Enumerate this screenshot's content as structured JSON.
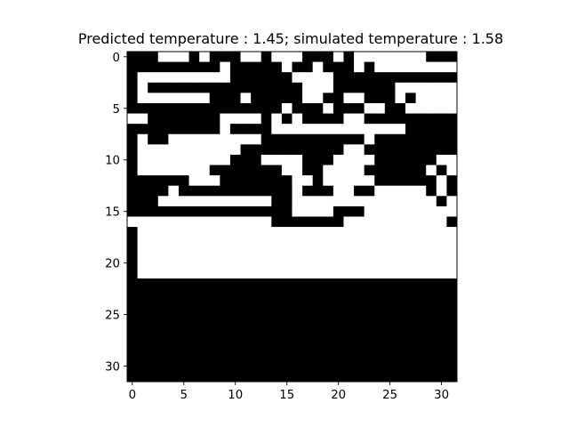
{
  "chart_data": {
    "type": "heatmap",
    "title": "Predicted temperature : 1.45; simulated temperature : 1.58",
    "xlabel": "",
    "ylabel": "",
    "colormap": "binary",
    "colors": {
      "on": "#000000",
      "off": "#ffffff"
    },
    "grid": false,
    "legend": "none",
    "x_ticks": [
      0,
      5,
      10,
      15,
      20,
      25,
      30
    ],
    "y_ticks": [
      0,
      5,
      10,
      15,
      20,
      25,
      30
    ],
    "xlim": [
      -0.5,
      31.5
    ],
    "ylim": [
      31.5,
      -0.5
    ],
    "matrix_rows": [
      "11100010111001000111010000000111",
      "11111111101111101101110100000000",
      "10000000001111110000111111111111",
      "10111111111111111000111111000000",
      "10000000111011111001100111010000",
      "11111111111111101110111001100000",
      "00111111100001010111100111111111",
      "11111111101111000000000000011111",
      "10110000000001111111111011111111",
      "10000000000111111111100111111111",
      "10000000001110000111000011111100",
      "10000000111111100110000111111010",
      "11111100011111110010000011111101",
      "11110111111111110111001100000101",
      "11100000000000110000000000000010",
      "11111111111111110000111000000000",
      "00000000000000111111100000000001",
      "10000000000000000000000000000000",
      "10000000000000000000000000000000",
      "10000000000000000000000000000000",
      "10000000000000000000000000000000",
      "10000000000000000000000000000000",
      "11111111111111111111111111111111",
      "11111111111111111111111111111111",
      "11111111111111111111111111111111",
      "11111111111111111111111111111111",
      "11111111111111111111111111111111",
      "11111111111111111111111111111111",
      "11111111111111111111111111111111",
      "11111111111111111111111111111111",
      "11111111111111111111111111111111",
      "11111111111111111111111111111111"
    ]
  }
}
